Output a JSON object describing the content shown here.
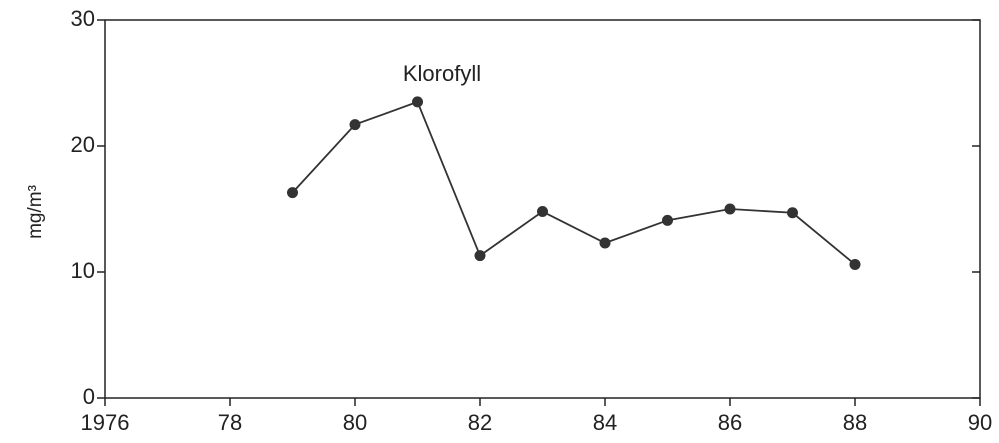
{
  "chart_data": {
    "type": "line",
    "annotation": "Klorofyll",
    "y_label": "mg/m³",
    "x": [
      1979,
      1980,
      1981,
      1982,
      1983,
      1984,
      1985,
      1986,
      1987,
      1988
    ],
    "values": [
      16.3,
      21.7,
      23.5,
      11.3,
      14.8,
      12.3,
      14.1,
      15.0,
      14.7,
      10.6
    ],
    "color": "#333333",
    "xlim": [
      1976,
      1990
    ],
    "xticks": [
      1976,
      {
        "value": 1978,
        "label": "78"
      },
      {
        "value": 1980,
        "label": "80"
      },
      {
        "value": 1982,
        "label": "82"
      },
      {
        "value": 1984,
        "label": "84"
      },
      {
        "value": 1986,
        "label": "86"
      },
      {
        "value": 1988,
        "label": "88"
      },
      {
        "value": 1990,
        "label": "90"
      }
    ],
    "ylim": [
      0,
      30
    ],
    "yticks": [
      0,
      10,
      20,
      30
    ],
    "grid": false
  }
}
